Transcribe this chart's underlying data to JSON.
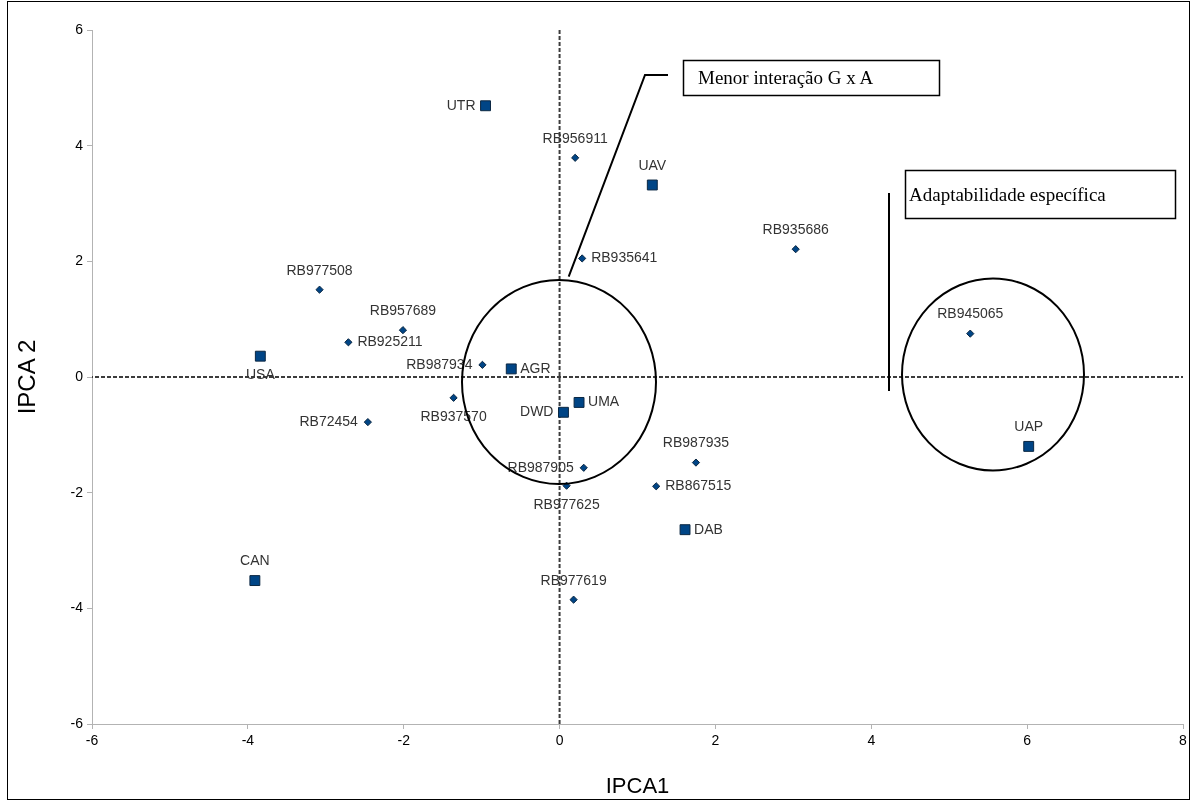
{
  "chart_data": {
    "type": "scatter",
    "xlabel": "IPCA1",
    "ylabel": "IPCA 2",
    "xlim": [
      -6,
      8
    ],
    "xticks": [
      -6,
      -4,
      -2,
      0,
      2,
      4,
      6,
      8
    ],
    "ylim": [
      -6,
      6
    ],
    "yticks": [
      -6,
      -4,
      -2,
      0,
      2,
      4,
      6
    ],
    "series": [
      {
        "color": "#004586",
        "marker": "square",
        "x": [
          -0.95,
          1.19,
          -3.84,
          -0.62,
          0.25,
          0.05,
          1.61,
          -3.91,
          6.02
        ],
        "values": [
          4.69,
          3.32,
          0.36,
          0.14,
          -0.44,
          -0.61,
          -2.64,
          -3.52,
          -1.2
        ]
      },
      {
        "color": "#004586",
        "marker": "diamond",
        "x": [
          -3.08,
          -2.01,
          -2.71,
          -0.99,
          -1.36,
          -2.46,
          0.2,
          0.29,
          0.31,
          0.09,
          0.18,
          1.75,
          1.24,
          3.03,
          5.27
        ],
        "values": [
          1.51,
          0.81,
          0.6,
          0.21,
          -0.36,
          -0.78,
          3.79,
          2.05,
          -1.57,
          -1.88,
          -3.85,
          -1.48,
          -1.89,
          2.21,
          0.75
        ]
      }
    ],
    "ref_lines": [
      {
        "axis": "x",
        "value": 0,
        "color": "#3c3c3c",
        "line_style": "dashed"
      },
      {
        "axis": "y",
        "value": 0,
        "color": "#3c3c3c",
        "line_style": "dashed"
      }
    ],
    "annotations": [
      "Menor interação G x A",
      "Adaptabilidade específica",
      {
        "text": "UTR",
        "x": -0.95,
        "y": 4.69
      },
      {
        "text": "UAV",
        "x": 1.19,
        "y": 3.32
      },
      {
        "text": "USA",
        "x": -3.84,
        "y": 0.36
      },
      {
        "text": "AGR",
        "x": -0.62,
        "y": 0.14
      },
      {
        "text": "UMA",
        "x": 0.25,
        "y": -0.44
      },
      {
        "text": "DWD",
        "x": 0.05,
        "y": -0.61
      },
      {
        "text": "DAB",
        "x": 1.61,
        "y": -2.64
      },
      {
        "text": "CAN",
        "x": -3.91,
        "y": -3.52
      },
      {
        "text": "UAP",
        "x": 6.02,
        "y": -1.2
      },
      {
        "text": "RB977508",
        "x": -3.08,
        "y": 1.51
      },
      {
        "text": "RB957689",
        "x": -2.01,
        "y": 0.81
      },
      {
        "text": "RB925211",
        "x": -2.71,
        "y": 0.6
      },
      {
        "text": "RB987934",
        "x": -0.99,
        "y": 0.21
      },
      {
        "text": "RB937570",
        "x": -1.36,
        "y": -0.36
      },
      {
        "text": "RB72454",
        "x": -2.46,
        "y": -0.78
      },
      {
        "text": "RB956911",
        "x": 0.2,
        "y": 3.79
      },
      {
        "text": "RB935641",
        "x": 0.29,
        "y": 2.05
      },
      {
        "text": "RB987905",
        "x": 0.31,
        "y": -1.57
      },
      {
        "text": "RB977625",
        "x": 0.09,
        "y": -1.88
      },
      {
        "text": "RB977619",
        "x": 0.18,
        "y": -3.85
      },
      {
        "text": "RB987935",
        "x": 1.75,
        "y": -1.48
      },
      {
        "text": "RB867515",
        "x": 1.24,
        "y": -1.89
      },
      {
        "text": "RB935686",
        "x": 3.03,
        "y": 2.21
      },
      {
        "text": "RB945065",
        "x": 5.27,
        "y": 0.75
      }
    ]
  }
}
